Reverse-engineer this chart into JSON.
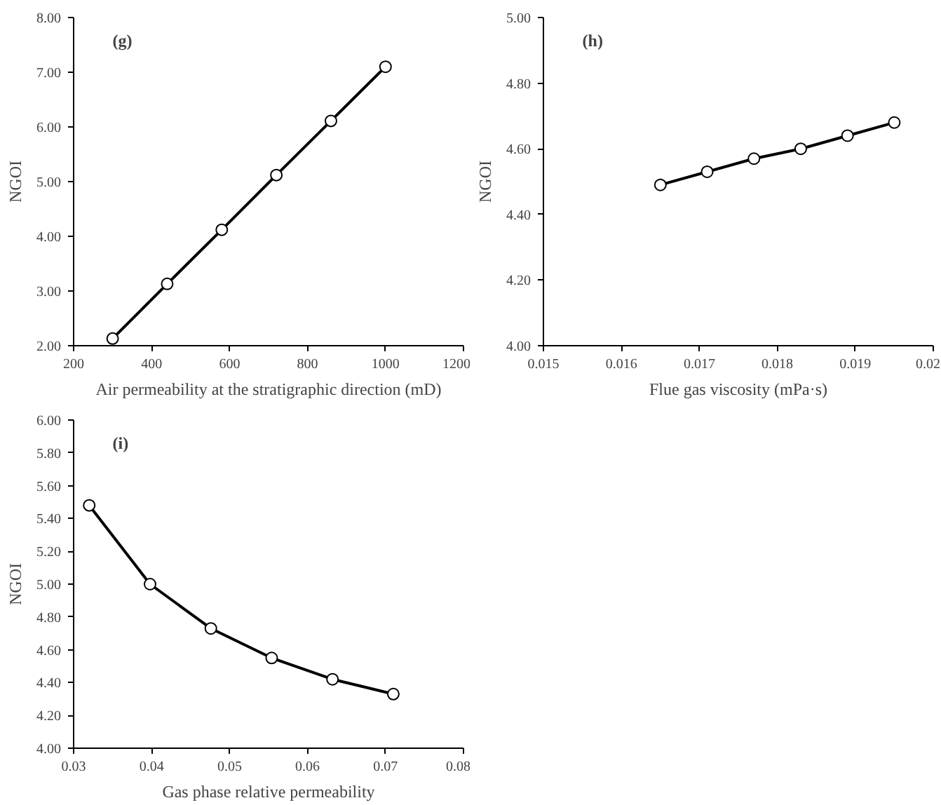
{
  "chart_data": [
    {
      "type": "line",
      "marker": "circle",
      "grid": false,
      "annotations": [
        "(g)"
      ],
      "xlabel": "Air permeability at the stratigraphic direction (mD)",
      "ylabel": "NGOI",
      "x": [
        300,
        440,
        580,
        720,
        860,
        1000
      ],
      "series": [
        {
          "color": "#000000",
          "values": [
            2.13,
            3.13,
            4.12,
            5.12,
            6.11,
            7.1
          ]
        }
      ],
      "xlim": [
        200,
        1200
      ],
      "xticks": [
        200,
        400,
        600,
        800,
        1000,
        1200
      ],
      "ylim": [
        2,
        8
      ],
      "yticks": [
        {
          "value": 2,
          "label": "2.00"
        },
        {
          "value": 3,
          "label": "3.00"
        },
        {
          "value": 4,
          "label": "4.00"
        },
        {
          "value": 5,
          "label": "5.00"
        },
        {
          "value": 6,
          "label": "6.00"
        },
        {
          "value": 7,
          "label": "7.00"
        },
        {
          "value": 8,
          "label": "8.00"
        }
      ]
    },
    {
      "type": "line",
      "marker": "circle",
      "grid": false,
      "annotations": [
        "(h)"
      ],
      "xlabel": "Flue gas viscosity (mPa·s)",
      "ylabel": "NGOI",
      "x": [
        0.0165,
        0.0171,
        0.0177,
        0.0183,
        0.0189,
        0.0195
      ],
      "series": [
        {
          "color": "#000000",
          "values": [
            4.49,
            4.53,
            4.57,
            4.6,
            4.64,
            4.68
          ]
        }
      ],
      "xlim": [
        0.015,
        0.02
      ],
      "xticks": [
        0.015,
        0.016,
        0.017,
        0.018,
        0.019,
        0.02
      ],
      "ylim": [
        4,
        5
      ],
      "yticks": [
        {
          "value": 4,
          "label": "4.00"
        },
        {
          "value": 4.2,
          "label": "4.20"
        },
        {
          "value": 4.4,
          "label": "4.40"
        },
        {
          "value": 4.6,
          "label": "4.60"
        },
        {
          "value": 4.8,
          "label": "4.80"
        },
        {
          "value": 5,
          "label": "5.00"
        }
      ]
    },
    {
      "type": "line",
      "marker": "circle",
      "grid": false,
      "annotations": [
        "(i)"
      ],
      "xlabel": "Gas phase relative permeability",
      "ylabel": "NGOI",
      "x": [
        0.032,
        0.0398,
        0.0476,
        0.0554,
        0.0632,
        0.071
      ],
      "series": [
        {
          "color": "#000000",
          "values": [
            5.48,
            5.0,
            4.73,
            4.55,
            4.42,
            4.33
          ]
        }
      ],
      "xlim": [
        0.03,
        0.08
      ],
      "xticks": [
        0.03,
        0.04,
        0.05,
        0.06,
        0.07,
        0.08
      ],
      "ylim": [
        4,
        6
      ],
      "yticks": [
        {
          "value": 4,
          "label": "4.00"
        },
        {
          "value": 4.2,
          "label": "4.20"
        },
        {
          "value": 4.4,
          "label": "4.40"
        },
        {
          "value": 4.6,
          "label": "4.60"
        },
        {
          "value": 4.8,
          "label": "4.80"
        },
        {
          "value": 5,
          "label": "5.00"
        },
        {
          "value": 5.2,
          "label": "5.20"
        },
        {
          "value": 5.4,
          "label": "5.40"
        },
        {
          "value": 5.6,
          "label": "5.60"
        },
        {
          "value": 5.8,
          "label": "5.80"
        },
        {
          "value": 6,
          "label": "6.00"
        }
      ]
    }
  ]
}
